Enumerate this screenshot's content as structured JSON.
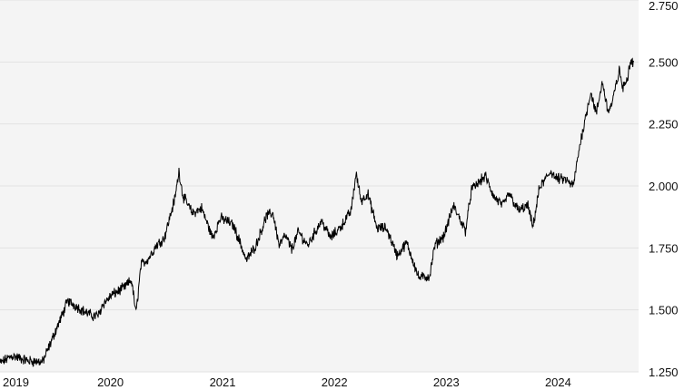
{
  "chart_data": {
    "type": "line",
    "title": "",
    "xlabel": "",
    "ylabel": "",
    "x_ticks": [
      "2019",
      "2020",
      "2021",
      "2022",
      "2023",
      "2024"
    ],
    "y_ticks": [
      "1.250",
      "1.500",
      "1.750",
      "2.000",
      "2.250",
      "2.500",
      "2.750"
    ],
    "xlim": [
      "2019-01-01",
      "2024-09-15"
    ],
    "ylim": [
      1250,
      2750
    ],
    "grid": "horizontal",
    "colors": {
      "plot_background": "#f4f4f4",
      "grid": "#e2e2e2",
      "line": "#000000"
    },
    "series": [
      {
        "values_approx": [
          [
            "2019-01-01",
            1285
          ],
          [
            "2019-02-10",
            1315
          ],
          [
            "2019-04-01",
            1295
          ],
          [
            "2019-05-20",
            1290
          ],
          [
            "2019-06-10",
            1350
          ],
          [
            "2019-07-01",
            1415
          ],
          [
            "2019-07-20",
            1470
          ],
          [
            "2019-08-10",
            1535
          ],
          [
            "2019-09-01",
            1520
          ],
          [
            "2019-10-01",
            1495
          ],
          [
            "2019-11-01",
            1475
          ],
          [
            "2019-11-20",
            1480
          ],
          [
            "2019-12-01",
            1520
          ],
          [
            "2020-01-01",
            1560
          ],
          [
            "2020-02-10",
            1590
          ],
          [
            "2020-03-05",
            1620
          ],
          [
            "2020-03-20",
            1485
          ],
          [
            "2020-04-05",
            1680
          ],
          [
            "2020-05-01",
            1710
          ],
          [
            "2020-05-25",
            1760
          ],
          [
            "2020-06-20",
            1790
          ],
          [
            "2020-07-25",
            1950
          ],
          [
            "2020-08-07",
            2060
          ],
          [
            "2020-08-20",
            1960
          ],
          [
            "2020-09-20",
            1890
          ],
          [
            "2020-10-20",
            1910
          ],
          [
            "2020-11-25",
            1790
          ],
          [
            "2020-12-20",
            1870
          ],
          [
            "2021-01-10",
            1860
          ],
          [
            "2021-02-01",
            1840
          ],
          [
            "2021-02-20",
            1780
          ],
          [
            "2021-03-15",
            1700
          ],
          [
            "2021-04-15",
            1760
          ],
          [
            "2021-05-20",
            1880
          ],
          [
            "2021-06-10",
            1890
          ],
          [
            "2021-06-30",
            1760
          ],
          [
            "2021-07-20",
            1800
          ],
          [
            "2021-08-10",
            1745
          ],
          [
            "2021-09-01",
            1815
          ],
          [
            "2021-10-01",
            1760
          ],
          [
            "2021-11-15",
            1860
          ],
          [
            "2021-12-15",
            1790
          ],
          [
            "2022-01-20",
            1840
          ],
          [
            "2022-02-20",
            1900
          ],
          [
            "2022-03-08",
            2050
          ],
          [
            "2022-03-25",
            1940
          ],
          [
            "2022-04-15",
            1970
          ],
          [
            "2022-05-15",
            1830
          ],
          [
            "2022-06-15",
            1830
          ],
          [
            "2022-07-20",
            1720
          ],
          [
            "2022-08-20",
            1770
          ],
          [
            "2022-09-15",
            1680
          ],
          [
            "2022-09-28",
            1630
          ],
          [
            "2022-11-03",
            1635
          ],
          [
            "2022-11-20",
            1760
          ],
          [
            "2022-12-20",
            1800
          ],
          [
            "2023-01-20",
            1920
          ],
          [
            "2023-02-28",
            1820
          ],
          [
            "2023-03-20",
            1985
          ],
          [
            "2023-05-04",
            2040
          ],
          [
            "2023-06-01",
            1955
          ],
          [
            "2023-07-01",
            1920
          ],
          [
            "2023-07-20",
            1970
          ],
          [
            "2023-08-20",
            1900
          ],
          [
            "2023-09-20",
            1920
          ],
          [
            "2023-10-06",
            1830
          ],
          [
            "2023-10-27",
            1990
          ],
          [
            "2023-12-04",
            2060
          ],
          [
            "2023-12-20",
            2030
          ],
          [
            "2024-01-20",
            2025
          ],
          [
            "2024-02-15",
            2000
          ],
          [
            "2024-03-08",
            2170
          ],
          [
            "2024-04-12",
            2380
          ],
          [
            "2024-04-30",
            2290
          ],
          [
            "2024-05-20",
            2420
          ],
          [
            "2024-06-07",
            2300
          ],
          [
            "2024-06-20",
            2330
          ],
          [
            "2024-07-15",
            2470
          ],
          [
            "2024-07-25",
            2390
          ],
          [
            "2024-08-10",
            2440
          ],
          [
            "2024-08-20",
            2510
          ],
          [
            "2024-08-30",
            2500
          ]
        ]
      }
    ]
  }
}
